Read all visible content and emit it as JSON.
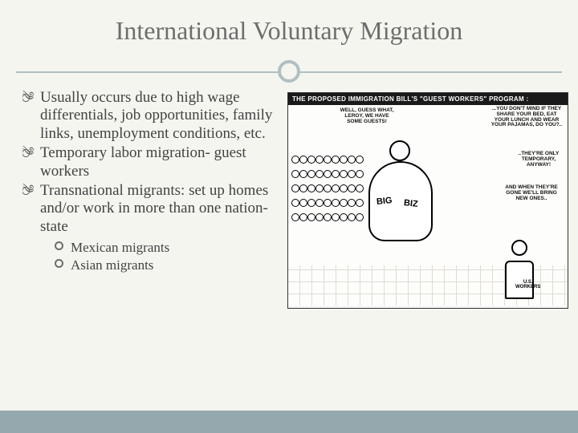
{
  "title": "International Voluntary Migration",
  "bullets": [
    {
      "text": "Usually occurs due to high wage differentials, job opportunities, family links, unemployment conditions, etc."
    },
    {
      "text": "Temporary labor migration- guest workers"
    },
    {
      "text": "Transnational migrants: set up homes and/or work in more than one nation-state"
    }
  ],
  "sub_bullets": [
    {
      "text": "Mexican migrants"
    },
    {
      "text": "Asian migrants"
    }
  ],
  "cartoon": {
    "header": "THE PROPOSED IMMIGRATION BILL'S \"GUEST WORKERS\" PROGRAM :",
    "speech1": "WELL, GUESS WHAT, LEROY, WE HAVE SOME GUESTS!",
    "speech2": "...YOU DON'T MIND IF THEY SHARE YOUR BED, EAT YOUR LUNCH AND WEAR YOUR PAJAMAS, DO YOU?..",
    "speech3": "..THEY'RE ONLY TEMPORARY, ANYWAY!",
    "speech4": "AND WHEN THEY'RE GONE WE'LL BRING NEW ONES..",
    "big_label_1": "BIG",
    "big_label_2": "BIZ",
    "worker_label": "U.S. WORKERS"
  },
  "colors": {
    "background": "#f5f5f0",
    "title_color": "#6d6d6d",
    "accent": "#b0bfc2",
    "text": "#424242",
    "bottom_bar": "#95a8ad"
  }
}
